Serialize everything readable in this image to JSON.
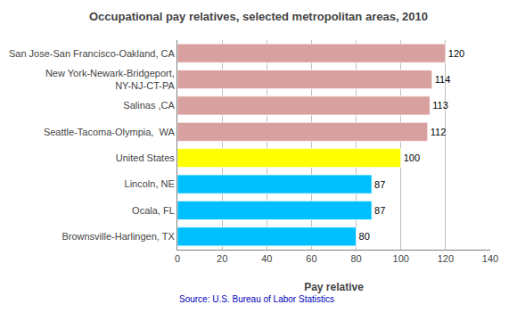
{
  "chart_data": {
    "type": "bar",
    "orientation": "horizontal",
    "title": "Occupational pay relatives, selected metropolitan areas, 2010",
    "categories": [
      "Brownsville-Harlingen, TX",
      "Ocala, FL",
      "Lincoln, NE",
      "United States",
      "Seattle-Tacoma-Olympia,  WA",
      "Salinas ,CA",
      "New York-Newark-Bridgeport,\nNY-NJ-CT-PA",
      "San Jose-San Francisco-Oakland, CA"
    ],
    "values": [
      80,
      87,
      87,
      100,
      112,
      113,
      114,
      120
    ],
    "colors": [
      "#00bfff",
      "#00bfff",
      "#00bfff",
      "#ffff00",
      "#d9a0a0",
      "#d9a0a0",
      "#d9a0a0",
      "#d9a0a0"
    ],
    "xlabel": "Pay relative",
    "xlim": [
      0,
      140
    ],
    "xticks": [
      0,
      20,
      40,
      60,
      80,
      100,
      120,
      140
    ],
    "grid": true,
    "data_labels": true,
    "annotations": [
      {
        "text": "Source: U.S. Bureau of Labor Statistics",
        "color": "#0000bb"
      }
    ]
  }
}
